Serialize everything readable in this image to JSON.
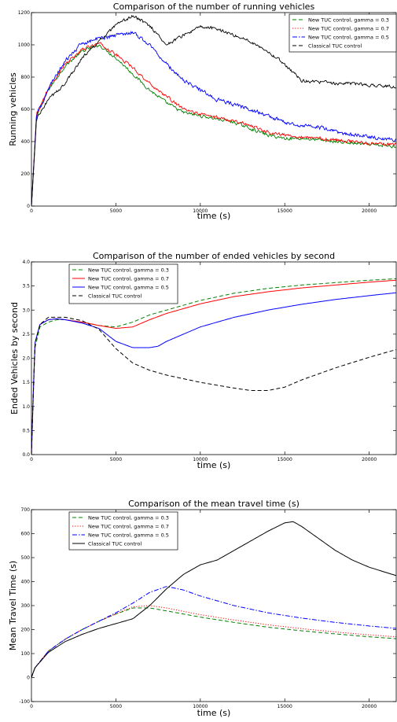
{
  "chart_data": [
    {
      "type": "line",
      "title": "Comparison of the number of running vehicles",
      "xlabel": "time (s)",
      "ylabel": "Running vehicles",
      "xlim": [
        0,
        21600
      ],
      "ylim": [
        0,
        1200
      ],
      "xticks": [
        0,
        5000,
        10000,
        15000,
        20000
      ],
      "yticks": [
        0,
        200,
        400,
        600,
        800,
        1000,
        1200
      ],
      "legend_position": "top-right",
      "noisy": true,
      "series": [
        {
          "name": "New TUC control, gamma = 0.3",
          "color": "#008000",
          "style": "dashed",
          "x": [
            0,
            300,
            1000,
            2000,
            3000,
            4000,
            5000,
            6000,
            7000,
            8000,
            9000,
            10000,
            11000,
            12000,
            13000,
            14000,
            15000,
            16000,
            17000,
            18000,
            19000,
            20000,
            21600
          ],
          "y": [
            0,
            560,
            720,
            870,
            960,
            1000,
            920,
            820,
            720,
            640,
            580,
            560,
            540,
            520,
            480,
            440,
            420,
            420,
            410,
            400,
            390,
            380,
            370
          ]
        },
        {
          "name": "New TUC control, gamma = 0.7",
          "color": "#ff0000",
          "style": "dotted",
          "x": [
            0,
            300,
            1000,
            2000,
            3000,
            4000,
            5000,
            6000,
            7000,
            8000,
            9000,
            10000,
            11000,
            12000,
            13000,
            14000,
            15000,
            16000,
            17000,
            18000,
            19000,
            20000,
            21600
          ],
          "y": [
            0,
            570,
            730,
            880,
            970,
            1010,
            940,
            860,
            760,
            680,
            600,
            570,
            550,
            530,
            500,
            460,
            440,
            430,
            420,
            410,
            400,
            390,
            380
          ]
        },
        {
          "name": "New TUC control, gamma = 0.5",
          "color": "#0000ff",
          "style": "dashdot",
          "x": [
            0,
            300,
            1000,
            2000,
            3000,
            4000,
            5000,
            6000,
            7000,
            8000,
            9000,
            10000,
            11000,
            12000,
            13000,
            14000,
            15000,
            16000,
            17000,
            18000,
            19000,
            20000,
            21600
          ],
          "y": [
            0,
            560,
            730,
            900,
            1010,
            1040,
            1060,
            1080,
            1000,
            880,
            780,
            720,
            660,
            630,
            600,
            560,
            520,
            500,
            490,
            460,
            440,
            430,
            410
          ]
        },
        {
          "name": "Classical TUC control",
          "color": "#000000",
          "style": "dashed",
          "x": [
            0,
            300,
            1000,
            2000,
            3000,
            4000,
            5000,
            6000,
            6500,
            7000,
            8000,
            9000,
            10000,
            11000,
            12000,
            13000,
            14000,
            15000,
            16000,
            17000,
            18000,
            19000,
            20000,
            21600
          ],
          "y": [
            0,
            540,
            660,
            760,
            920,
            1020,
            1120,
            1180,
            1150,
            1120,
            1000,
            1060,
            1110,
            1100,
            1060,
            1020,
            960,
            880,
            780,
            770,
            760,
            760,
            750,
            740
          ]
        }
      ]
    },
    {
      "type": "line",
      "title": "Comparison of the number of ended vehicles by second",
      "xlabel": "time (s)",
      "ylabel": "Ended Vehicles by second",
      "xlim": [
        0,
        21600
      ],
      "ylim": [
        0,
        4.0
      ],
      "xticks": [
        0,
        5000,
        10000,
        15000,
        20000
      ],
      "yticks": [
        0.0,
        0.5,
        1.0,
        1.5,
        2.0,
        2.5,
        3.0,
        3.5,
        4.0
      ],
      "legend_position": "top-left",
      "noisy": false,
      "series": [
        {
          "name": "New TUC control, gamma = 0.3",
          "color": "#008000",
          "style": "dashed",
          "x": [
            0,
            200,
            500,
            1000,
            1500,
            2000,
            3000,
            4000,
            5000,
            6000,
            7000,
            8000,
            10000,
            12000,
            14000,
            16000,
            18000,
            20000,
            21600
          ],
          "y": [
            0,
            2.2,
            2.65,
            2.75,
            2.8,
            2.8,
            2.75,
            2.68,
            2.65,
            2.75,
            2.9,
            3.0,
            3.2,
            3.35,
            3.45,
            3.52,
            3.57,
            3.62,
            3.65
          ]
        },
        {
          "name": "New TUC control, gamma = 0.7",
          "color": "#ff0000",
          "style": "solid",
          "x": [
            0,
            200,
            500,
            1000,
            1500,
            2000,
            3000,
            4000,
            5000,
            6000,
            7000,
            8000,
            10000,
            12000,
            14000,
            16000,
            18000,
            20000,
            21600
          ],
          "y": [
            0,
            2.3,
            2.7,
            2.8,
            2.82,
            2.8,
            2.75,
            2.68,
            2.62,
            2.65,
            2.8,
            2.93,
            3.13,
            3.28,
            3.38,
            3.46,
            3.52,
            3.58,
            3.62
          ]
        },
        {
          "name": "New TUC control, gamma = 0.5",
          "color": "#0000ff",
          "style": "solid",
          "x": [
            0,
            200,
            500,
            1000,
            1500,
            2000,
            3000,
            4000,
            5000,
            6000,
            7000,
            7500,
            8000,
            10000,
            12000,
            14000,
            16000,
            18000,
            20000,
            21600
          ],
          "y": [
            0,
            2.3,
            2.7,
            2.8,
            2.82,
            2.8,
            2.73,
            2.62,
            2.35,
            2.22,
            2.22,
            2.25,
            2.35,
            2.65,
            2.85,
            3.0,
            3.12,
            3.22,
            3.3,
            3.36
          ]
        },
        {
          "name": "Classical TUC control",
          "color": "#000000",
          "style": "dashed",
          "x": [
            0,
            200,
            500,
            1000,
            2000,
            3000,
            4000,
            5000,
            6000,
            7000,
            8000,
            10000,
            12000,
            13000,
            14000,
            15000,
            16000,
            18000,
            20000,
            21600
          ],
          "y": [
            0,
            2.3,
            2.7,
            2.85,
            2.85,
            2.78,
            2.6,
            2.2,
            1.9,
            1.75,
            1.65,
            1.5,
            1.38,
            1.33,
            1.33,
            1.4,
            1.55,
            1.8,
            2.02,
            2.18
          ]
        }
      ]
    },
    {
      "type": "line",
      "title": "Comparison of the mean travel time (s)",
      "xlabel": "time (s)",
      "ylabel": "Mean Travel Time (s)",
      "xlim": [
        0,
        21600
      ],
      "ylim": [
        -100,
        700
      ],
      "xticks": [
        0,
        5000,
        10000,
        15000,
        20000
      ],
      "yticks": [
        -100,
        0,
        100,
        200,
        300,
        400,
        500,
        600,
        700
      ],
      "legend_position": "top-left",
      "noisy": false,
      "series": [
        {
          "name": "New TUC control, gamma = 0.3",
          "color": "#008000",
          "style": "dashed",
          "x": [
            0,
            200,
            1000,
            2000,
            3000,
            4000,
            5000,
            6000,
            7000,
            8000,
            10000,
            12000,
            14000,
            16000,
            18000,
            20000,
            21600
          ],
          "y": [
            0,
            40,
            110,
            160,
            200,
            235,
            265,
            290,
            290,
            278,
            252,
            230,
            210,
            195,
            182,
            170,
            162
          ]
        },
        {
          "name": "New TUC control, gamma = 0.7",
          "color": "#ff0000",
          "style": "dotted",
          "x": [
            0,
            200,
            1000,
            2000,
            3000,
            4000,
            5000,
            6000,
            7000,
            8000,
            10000,
            12000,
            14000,
            16000,
            18000,
            20000,
            21600
          ],
          "y": [
            0,
            40,
            110,
            160,
            200,
            235,
            265,
            295,
            300,
            290,
            262,
            240,
            220,
            204,
            190,
            178,
            170
          ]
        },
        {
          "name": "New TUC control, gamma = 0.5",
          "color": "#0000ff",
          "style": "dashdot",
          "x": [
            0,
            200,
            1000,
            2000,
            3000,
            4000,
            5000,
            6000,
            7000,
            8000,
            9000,
            10000,
            12000,
            14000,
            16000,
            18000,
            20000,
            21600
          ],
          "y": [
            0,
            40,
            110,
            160,
            200,
            235,
            270,
            310,
            355,
            380,
            365,
            340,
            300,
            270,
            248,
            230,
            215,
            205
          ]
        },
        {
          "name": "Classical TUC control",
          "color": "#000000",
          "style": "solid",
          "x": [
            0,
            200,
            1000,
            2000,
            3000,
            4000,
            5000,
            6000,
            7000,
            8000,
            9000,
            10000,
            11000,
            12000,
            13000,
            14000,
            15000,
            15500,
            16000,
            17000,
            18000,
            19000,
            20000,
            21600
          ],
          "y": [
            0,
            40,
            105,
            150,
            180,
            205,
            225,
            245,
            300,
            370,
            430,
            470,
            490,
            530,
            570,
            610,
            645,
            650,
            630,
            580,
            530,
            490,
            460,
            425
          ]
        }
      ]
    }
  ]
}
